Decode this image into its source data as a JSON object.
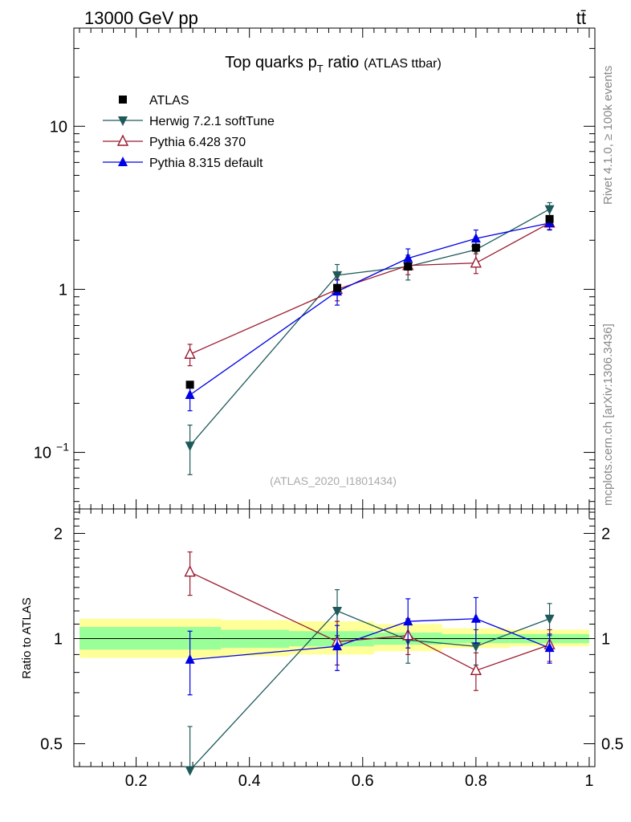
{
  "header": {
    "energy_label": "13000 GeV pp",
    "process_label": "tt̄"
  },
  "side_labels": {
    "rivet": "Rivet 4.1.0, ≥ 100k events",
    "mcplots": "mcplots.cern.ch [arXiv:1306.3436]"
  },
  "chart_data": {
    "type": "scatter",
    "title": "Top quarks p",
    "title_subscript": "T",
    "title_suffix": " ratio",
    "title_note": "(ATLAS ttbar)",
    "analysis_id": "(ATLAS_2020_I1801434)",
    "x": [
      0.295,
      0.555,
      0.68,
      0.8,
      0.93
    ],
    "xlim": [
      0.09,
      1.01
    ],
    "xticks": [
      0.2,
      0.4,
      0.6,
      0.8,
      1.0
    ],
    "xtick_labels": [
      "0.2",
      "0.4",
      "0.6",
      "0.8",
      "1"
    ],
    "main_ylim": [
      0.045,
      40
    ],
    "main_yticks": [
      0.1,
      1,
      10
    ],
    "main_ytick_labels": [
      "10",
      "1",
      "10"
    ],
    "main_ytick_exponent": "−1",
    "ratio_ylabel": "Ratio to ATLAS",
    "ratio_ylim": [
      0.43,
      2.35
    ],
    "ratio_yticks": [
      0.5,
      1,
      2
    ],
    "ratio_ytick_labels": [
      "0.5",
      "1",
      "2"
    ],
    "band_edges": [
      0.1,
      0.35,
      0.47,
      0.62,
      0.74,
      0.86,
      1.0
    ],
    "band_green": [
      [
        0.93,
        1.08
      ],
      [
        0.94,
        1.06
      ],
      [
        0.95,
        1.05
      ],
      [
        0.96,
        1.04
      ],
      [
        0.97,
        1.03
      ],
      [
        0.97,
        1.03
      ]
    ],
    "band_yellow": [
      [
        0.88,
        1.14
      ],
      [
        0.89,
        1.13
      ],
      [
        0.9,
        1.12
      ],
      [
        0.92,
        1.1
      ],
      [
        0.94,
        1.07
      ],
      [
        0.95,
        1.06
      ]
    ],
    "series": [
      {
        "name": "ATLAS",
        "color": "#000000",
        "marker": "square",
        "values": [
          0.26,
          1.02,
          1.38,
          1.8,
          2.7
        ],
        "errors": [
          0.01,
          0.03,
          0.05,
          0.07,
          0.1
        ],
        "ratio": [
          1,
          1,
          1,
          1,
          1
        ],
        "ratio_errors": [
          0,
          0,
          0,
          0,
          0
        ]
      },
      {
        "name": "Herwig 7.2.1 softTune",
        "color": "#1e5a5a",
        "marker": "triangle-down",
        "values": [
          0.11,
          1.22,
          1.38,
          1.75,
          3.1
        ],
        "errors": [
          0.037,
          0.2,
          0.24,
          0.28,
          0.3
        ],
        "ratio": [
          0.42,
          1.2,
          0.99,
          0.95,
          1.14
        ],
        "ratio_errors": [
          0.14,
          0.18,
          0.14,
          0.11,
          0.12
        ]
      },
      {
        "name": "Pythia 6.428 370",
        "color": "#9b1b30",
        "marker": "triangle-up-open",
        "values": [
          0.4,
          1.0,
          1.4,
          1.45,
          2.55
        ],
        "errors": [
          0.06,
          0.15,
          0.17,
          0.2,
          0.22
        ],
        "ratio": [
          1.55,
          0.98,
          1.02,
          0.81,
          0.96
        ],
        "ratio_errors": [
          0.22,
          0.14,
          0.12,
          0.1,
          0.1
        ]
      },
      {
        "name": "Pythia 8.315 default",
        "color": "#0000e6",
        "marker": "triangle-up",
        "values": [
          0.225,
          0.97,
          1.55,
          2.05,
          2.55
        ],
        "errors": [
          0.045,
          0.17,
          0.22,
          0.26,
          0.24
        ],
        "ratio": [
          0.87,
          0.95,
          1.12,
          1.14,
          0.94
        ],
        "ratio_errors": [
          0.18,
          0.14,
          0.18,
          0.17,
          0.09
        ]
      }
    ]
  }
}
